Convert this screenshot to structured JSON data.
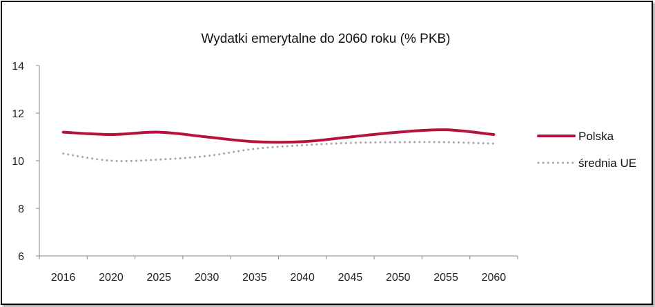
{
  "chart_data": {
    "type": "line",
    "title": "Wydatki emerytalne do 2060 roku (% PKB)",
    "xlabel": "",
    "ylabel": "",
    "categories": [
      "2016",
      "2020",
      "2025",
      "2030",
      "2035",
      "2040",
      "2045",
      "2050",
      "2055",
      "2060"
    ],
    "ylim": [
      6,
      14
    ],
    "yticks": [
      "6",
      "8",
      "10",
      "12",
      "14"
    ],
    "grid": false,
    "legend_position": "right",
    "series": [
      {
        "name": "Polska",
        "color": "#b5123d",
        "style": "solid",
        "values": [
          11.2,
          11.1,
          11.2,
          11.0,
          10.8,
          10.8,
          11.0,
          11.2,
          11.3,
          11.1
        ]
      },
      {
        "name": "średnia UE",
        "color": "#a6a6a6",
        "style": "dotted",
        "values": [
          10.3,
          10.0,
          10.05,
          10.2,
          10.5,
          10.65,
          10.75,
          10.78,
          10.78,
          10.72
        ]
      }
    ]
  }
}
